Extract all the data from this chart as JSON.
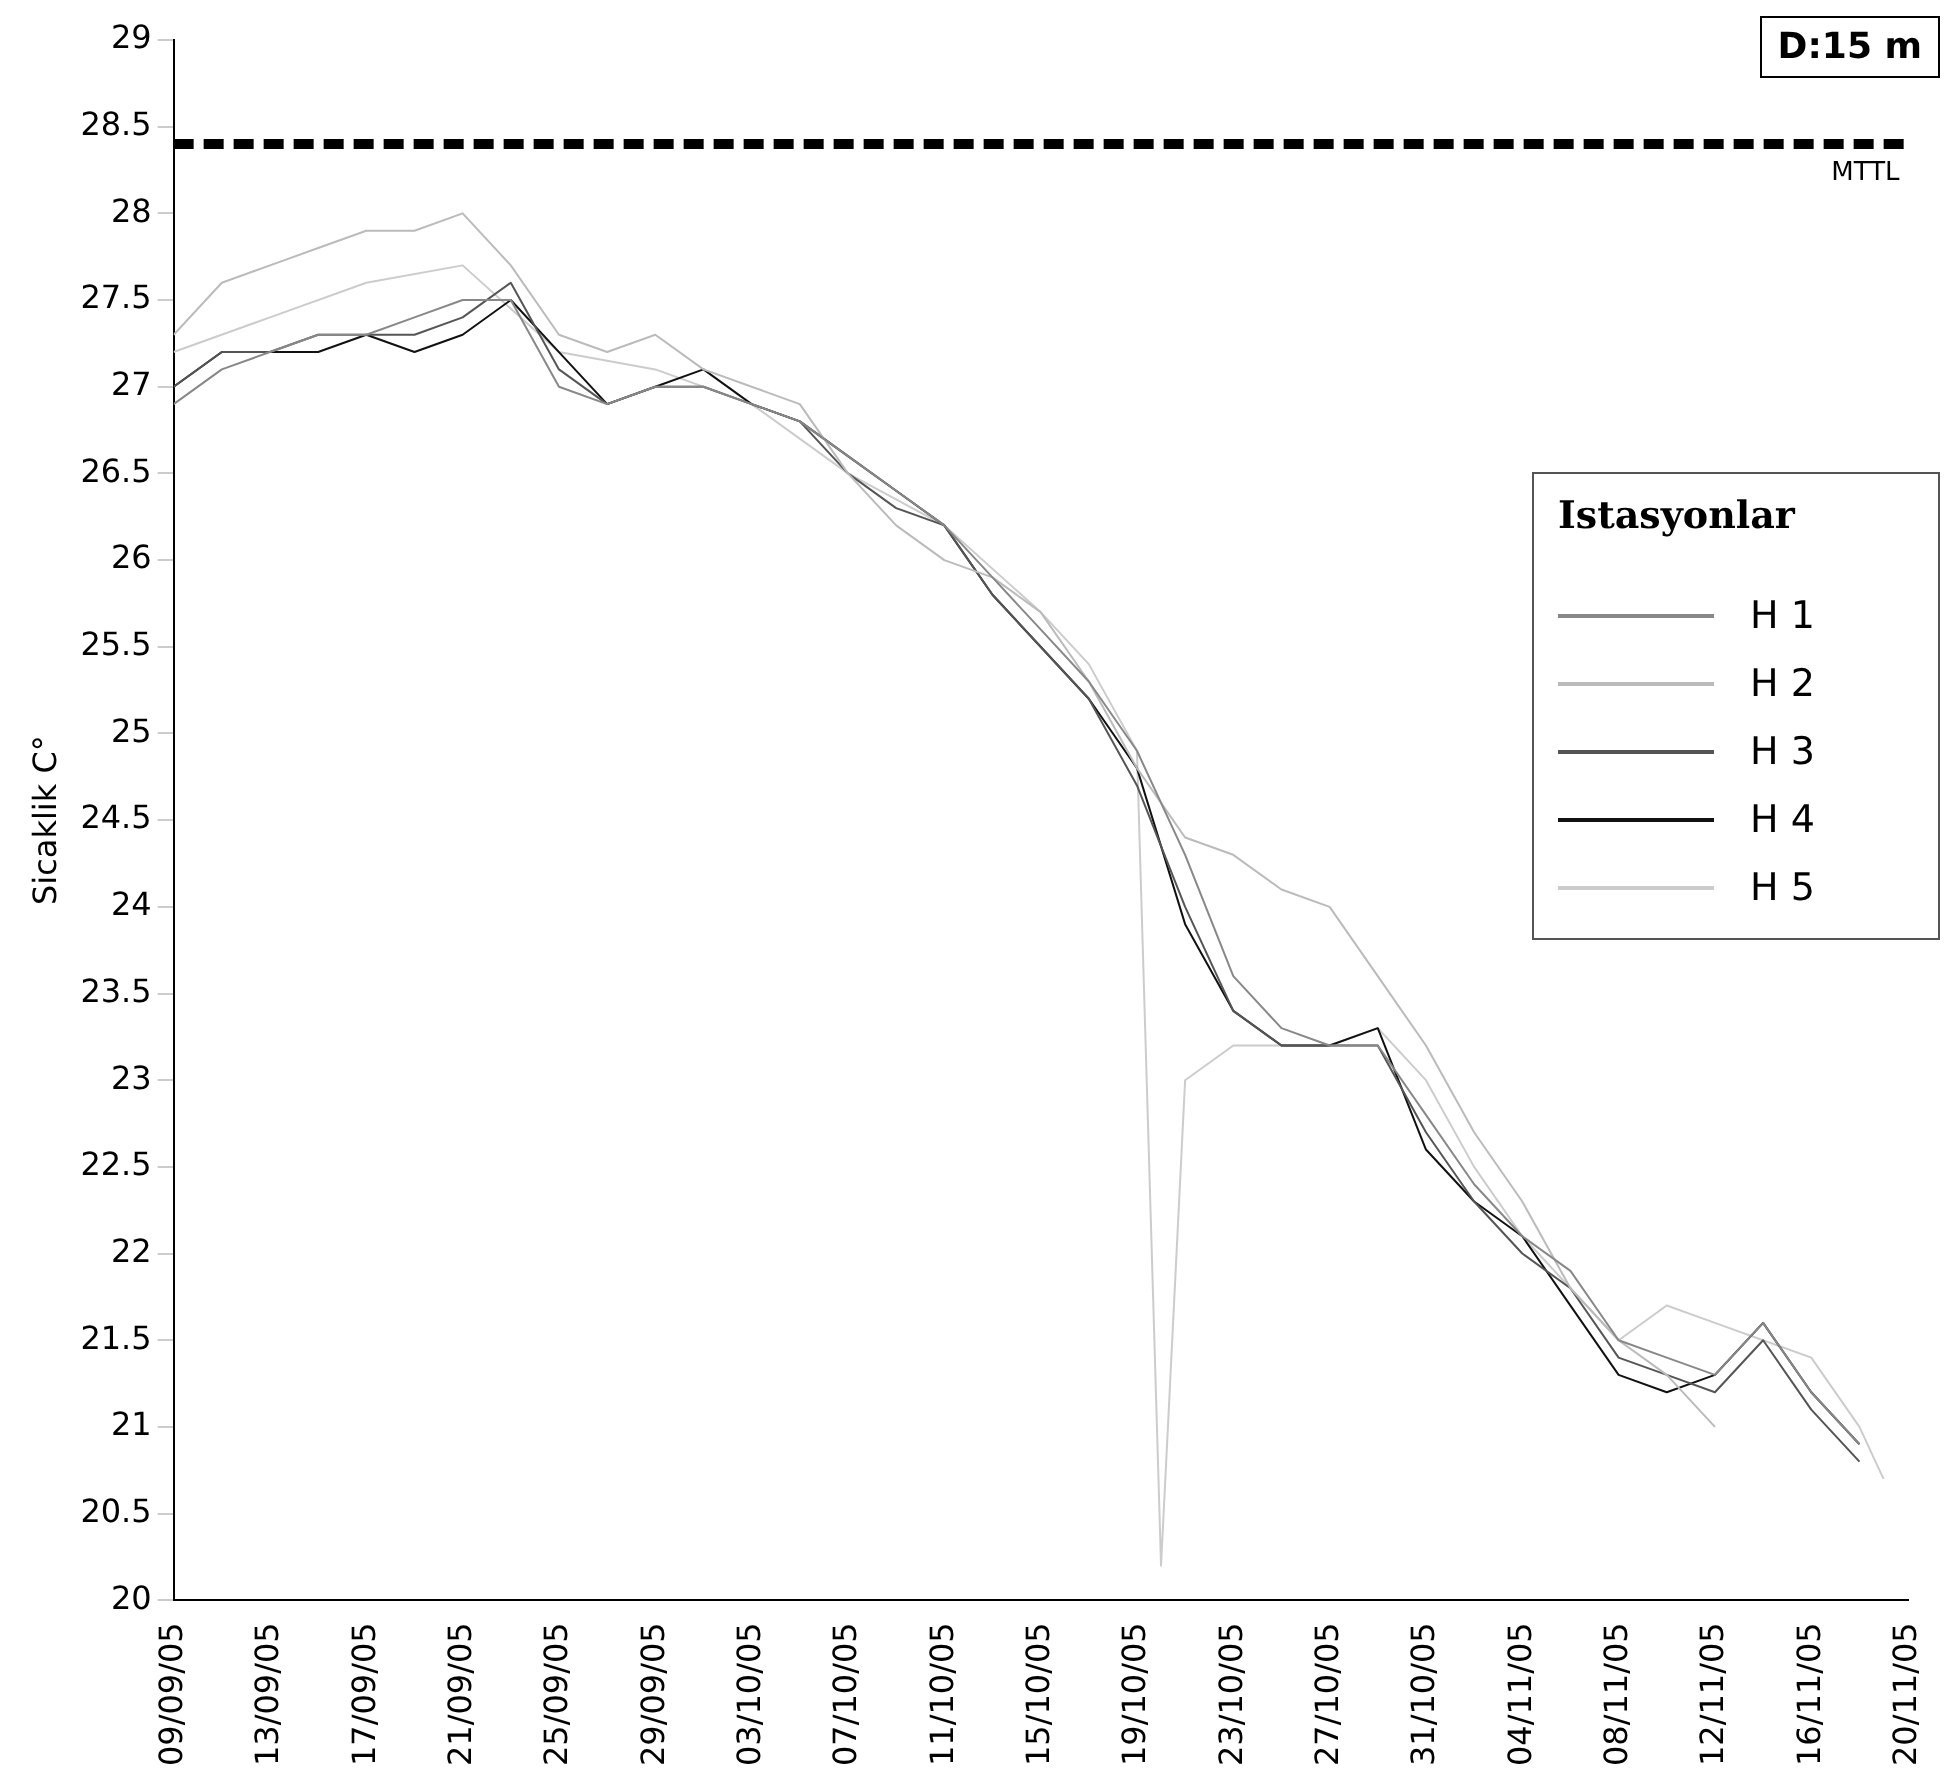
{
  "chart_data": {
    "type": "line",
    "ylabel": "Sicaklik C°",
    "legend_title": "Istasyonlar",
    "legend": "right",
    "grid": false,
    "marker": "none",
    "line_style": "solid",
    "annotations": [
      "D:15 m"
    ],
    "ref_lines": [
      {
        "axis": "y",
        "value": 28.4,
        "label": "MTTL",
        "color": "#000000",
        "line_style": "dashed"
      }
    ],
    "xlim": [
      "--09-09",
      "--11-20"
    ],
    "xticks": [
      {
        "value": "--09-09",
        "label": "09/09/05"
      },
      {
        "value": "--09-13",
        "label": "13/09/05"
      },
      {
        "value": "--09-17",
        "label": "17/09/05"
      },
      {
        "value": "--09-21",
        "label": "21/09/05"
      },
      {
        "value": "--09-25",
        "label": "25/09/05"
      },
      {
        "value": "--09-29",
        "label": "29/09/05"
      },
      {
        "value": "--10-03",
        "label": "03/10/05"
      },
      {
        "value": "--10-07",
        "label": "07/10/05"
      },
      {
        "value": "--10-11",
        "label": "11/10/05"
      },
      {
        "value": "--10-15",
        "label": "15/10/05"
      },
      {
        "value": "--10-19",
        "label": "19/10/05"
      },
      {
        "value": "--10-23",
        "label": "23/10/05"
      },
      {
        "value": "--10-27",
        "label": "27/10/05"
      },
      {
        "value": "--10-31",
        "label": "31/10/05"
      },
      {
        "value": "--11-04",
        "label": "04/11/05"
      },
      {
        "value": "--11-08",
        "label": "08/11/05"
      },
      {
        "value": "--11-12",
        "label": "12/11/05"
      },
      {
        "value": "--11-16",
        "label": "16/11/05"
      },
      {
        "value": "--11-20",
        "label": "20/11/05"
      }
    ],
    "ylim": [
      20,
      29
    ],
    "yticks": [
      20,
      20.5,
      21,
      21.5,
      22,
      22.5,
      23,
      23.5,
      24,
      24.5,
      25,
      25.5,
      26,
      26.5,
      27,
      27.5,
      28,
      28.5,
      29
    ],
    "x": [
      "--09-09",
      "--09-11",
      "--09-13",
      "--09-15",
      "--09-17",
      "--09-19",
      "--09-21",
      "--09-23",
      "--09-25",
      "--09-27",
      "--09-29",
      "--10-01",
      "--10-03",
      "--10-05",
      "--10-07",
      "--10-09",
      "--10-11",
      "--10-13",
      "--10-15",
      "--10-17",
      "--10-19",
      "--10-21",
      "--10-23",
      "--10-25",
      "--10-27",
      "--10-29",
      "--10-31",
      "--11-02",
      "--11-04",
      "--11-06",
      "--11-08",
      "--11-10",
      "--11-12",
      "--11-14",
      "--11-16",
      "--11-18"
    ],
    "series": [
      {
        "name": "H 1",
        "color": "#888888",
        "values": [
          26.9,
          27.1,
          27.2,
          27.3,
          27.3,
          27.4,
          27.5,
          27.5,
          27.0,
          26.9,
          27.0,
          27.0,
          26.9,
          26.8,
          26.6,
          26.4,
          26.2,
          25.9,
          25.6,
          25.3,
          24.9,
          24.3,
          23.6,
          23.3,
          23.2,
          23.2,
          22.8,
          22.4,
          22.1,
          21.9,
          21.5,
          21.4,
          21.3,
          21.6,
          21.2,
          20.9
        ]
      },
      {
        "name": "H 2",
        "color": "#bbbbbb",
        "x": [
          "--09-09",
          "--09-11",
          "--09-13",
          "--09-15",
          "--09-17",
          "--09-19",
          "--09-21",
          "--09-23",
          "--09-25",
          "--09-27",
          "--09-29",
          "--10-01",
          "--10-03",
          "--10-05",
          "--10-07",
          "--10-09",
          "--10-11",
          "--10-13",
          "--10-15",
          "--10-17",
          "--10-19",
          "--10-21",
          "--10-23",
          "--10-25",
          "--10-27",
          "--10-29",
          "--10-31",
          "--11-02",
          "--11-04",
          "--11-06",
          "--11-08",
          "--11-10",
          "--11-12"
        ],
        "values": [
          27.3,
          27.6,
          27.7,
          27.8,
          27.9,
          27.9,
          28.0,
          27.7,
          27.3,
          27.2,
          27.3,
          27.1,
          27.0,
          26.9,
          26.5,
          26.2,
          26.0,
          25.9,
          25.7,
          25.3,
          24.8,
          24.4,
          24.3,
          24.1,
          24.0,
          23.6,
          23.2,
          22.7,
          22.3,
          21.8,
          21.5,
          21.3,
          21.0
        ]
      },
      {
        "name": "H 3",
        "color": "#555555",
        "values": [
          27.0,
          27.2,
          27.2,
          27.3,
          27.3,
          27.3,
          27.4,
          27.6,
          27.1,
          26.9,
          27.0,
          27.0,
          26.9,
          26.8,
          26.5,
          26.3,
          26.2,
          25.8,
          25.5,
          25.2,
          24.7,
          24.0,
          23.4,
          23.2,
          23.2,
          23.2,
          22.7,
          22.3,
          22.0,
          21.8,
          21.4,
          21.3,
          21.2,
          21.5,
          21.1,
          20.8
        ]
      },
      {
        "name": "H 4",
        "color": "#111111",
        "values": [
          27.0,
          27.2,
          27.2,
          27.2,
          27.3,
          27.2,
          27.3,
          27.5,
          27.2,
          26.9,
          27.0,
          27.1,
          26.9,
          26.8,
          26.6,
          26.4,
          26.2,
          25.8,
          25.5,
          25.2,
          24.8,
          23.9,
          23.4,
          23.2,
          23.2,
          23.3,
          22.6,
          22.3,
          22.1,
          21.7,
          21.3,
          21.2,
          21.3,
          21.6,
          21.2,
          20.9
        ]
      },
      {
        "name": "H 5",
        "color": "#cccccc",
        "x": [
          "--09-09",
          "--09-13",
          "--09-17",
          "--09-21",
          "--09-25",
          "--09-29",
          "--10-03",
          "--10-07",
          "--10-11",
          "--10-15",
          "--10-17",
          "--10-19",
          "--10-20",
          "--10-21",
          "--10-23",
          "--10-25",
          "--10-27",
          "--10-29",
          "--10-31",
          "--11-02",
          "--11-04",
          "--11-06",
          "--11-08",
          "--11-10",
          "--11-12",
          "--11-14",
          "--11-16",
          "--11-18",
          "--11-19"
        ],
        "values": [
          27.2,
          27.4,
          27.6,
          27.7,
          27.2,
          27.1,
          26.9,
          26.5,
          26.2,
          25.7,
          25.4,
          24.9,
          20.2,
          23.0,
          23.2,
          23.2,
          23.2,
          23.3,
          23.0,
          22.5,
          22.1,
          21.8,
          21.5,
          21.7,
          21.6,
          21.5,
          21.4,
          21.0,
          20.7
        ]
      }
    ]
  }
}
